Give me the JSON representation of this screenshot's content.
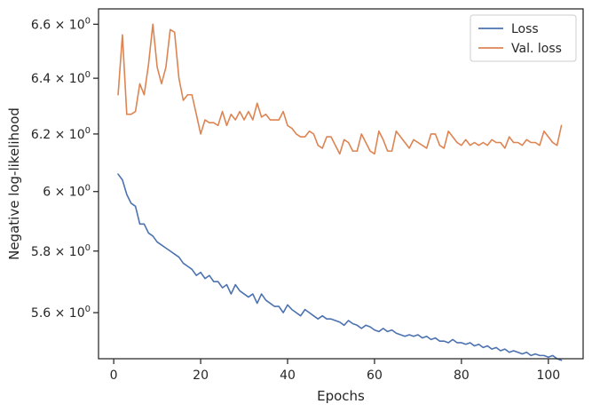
{
  "chart_data": {
    "type": "line",
    "xlabel": "Epochs",
    "ylabel": "Negative log-likelihood",
    "xlim": [
      -3.5,
      108.0
    ],
    "ylim": [
      5.455,
      6.658
    ],
    "yscale": "log",
    "grid": false,
    "legend_position": "top-right",
    "xticks": [
      0,
      20,
      40,
      60,
      80,
      100
    ],
    "xtick_labels": [
      "0",
      "20",
      "40",
      "60",
      "80",
      "100"
    ],
    "yticks": [
      5.6,
      5.8,
      6.0,
      6.2,
      6.4,
      6.6
    ],
    "ytick_labels": [
      {
        "mantissa": "5.6",
        "base": "10",
        "exp": "0"
      },
      {
        "mantissa": "5.8",
        "base": "10",
        "exp": "0"
      },
      {
        "mantissa": "6",
        "base": "10",
        "exp": "0"
      },
      {
        "mantissa": "6.2",
        "base": "10",
        "exp": "0"
      },
      {
        "mantissa": "6.4",
        "base": "10",
        "exp": "0"
      },
      {
        "mantissa": "6.6",
        "base": "10",
        "exp": "0"
      }
    ],
    "colors": {
      "Loss": "#4c72b0",
      "Val. loss": "#dd8452",
      "axes": "#262626"
    },
    "series": [
      {
        "name": "Loss",
        "x": [
          1,
          2,
          3,
          4,
          5,
          6,
          7,
          8,
          9,
          10,
          11,
          12,
          13,
          14,
          15,
          16,
          17,
          18,
          19,
          20,
          21,
          22,
          23,
          24,
          25,
          26,
          27,
          28,
          29,
          30,
          31,
          32,
          33,
          34,
          35,
          36,
          37,
          38,
          39,
          40,
          41,
          42,
          43,
          44,
          45,
          46,
          47,
          48,
          49,
          50,
          51,
          52,
          53,
          54,
          55,
          56,
          57,
          58,
          59,
          60,
          61,
          62,
          63,
          64,
          65,
          66,
          67,
          68,
          69,
          70,
          71,
          72,
          73,
          74,
          75,
          76,
          77,
          78,
          79,
          80,
          81,
          82,
          83,
          84,
          85,
          86,
          87,
          88,
          89,
          90,
          91,
          92,
          93,
          94,
          95,
          96,
          97,
          98,
          99,
          100,
          101,
          102,
          103
        ],
        "values": [
          6.06,
          6.04,
          5.99,
          5.96,
          5.95,
          5.89,
          5.89,
          5.86,
          5.85,
          5.83,
          5.82,
          5.81,
          5.8,
          5.79,
          5.78,
          5.76,
          5.75,
          5.74,
          5.72,
          5.73,
          5.71,
          5.72,
          5.7,
          5.7,
          5.68,
          5.69,
          5.66,
          5.69,
          5.67,
          5.66,
          5.65,
          5.66,
          5.63,
          5.66,
          5.64,
          5.63,
          5.62,
          5.62,
          5.6,
          5.625,
          5.61,
          5.6,
          5.59,
          5.61,
          5.6,
          5.59,
          5.58,
          5.59,
          5.58,
          5.58,
          5.575,
          5.57,
          5.56,
          5.575,
          5.565,
          5.56,
          5.55,
          5.56,
          5.555,
          5.545,
          5.54,
          5.55,
          5.54,
          5.545,
          5.535,
          5.53,
          5.525,
          5.53,
          5.525,
          5.53,
          5.52,
          5.525,
          5.515,
          5.52,
          5.51,
          5.51,
          5.505,
          5.515,
          5.505,
          5.505,
          5.5,
          5.505,
          5.495,
          5.5,
          5.49,
          5.495,
          5.485,
          5.49,
          5.48,
          5.485,
          5.475,
          5.48,
          5.475,
          5.47,
          5.475,
          5.465,
          5.47,
          5.465,
          5.465,
          5.46,
          5.465,
          5.455,
          5.45
        ]
      },
      {
        "name": "Val. loss",
        "x": [
          1,
          2,
          3,
          4,
          5,
          6,
          7,
          8,
          9,
          10,
          11,
          12,
          13,
          14,
          15,
          16,
          17,
          18,
          19,
          20,
          21,
          22,
          23,
          24,
          25,
          26,
          27,
          28,
          29,
          30,
          31,
          32,
          33,
          34,
          35,
          36,
          37,
          38,
          39,
          40,
          41,
          42,
          43,
          44,
          45,
          46,
          47,
          48,
          49,
          50,
          51,
          52,
          53,
          54,
          55,
          56,
          57,
          58,
          59,
          60,
          61,
          62,
          63,
          64,
          65,
          66,
          67,
          68,
          69,
          70,
          71,
          72,
          73,
          74,
          75,
          76,
          77,
          78,
          79,
          80,
          81,
          82,
          83,
          84,
          85,
          86,
          87,
          88,
          89,
          90,
          91,
          92,
          93,
          94,
          95,
          96,
          97,
          98,
          99,
          100,
          101,
          102,
          103
        ],
        "values": [
          6.34,
          6.56,
          6.27,
          6.27,
          6.28,
          6.38,
          6.34,
          6.45,
          6.6,
          6.44,
          6.38,
          6.44,
          6.58,
          6.57,
          6.4,
          6.32,
          6.34,
          6.34,
          6.27,
          6.2,
          6.25,
          6.24,
          6.24,
          6.23,
          6.28,
          6.23,
          6.27,
          6.25,
          6.28,
          6.25,
          6.28,
          6.25,
          6.31,
          6.26,
          6.27,
          6.25,
          6.25,
          6.25,
          6.28,
          6.23,
          6.22,
          6.2,
          6.19,
          6.19,
          6.21,
          6.2,
          6.16,
          6.15,
          6.19,
          6.19,
          6.16,
          6.13,
          6.18,
          6.17,
          6.14,
          6.14,
          6.2,
          6.17,
          6.14,
          6.13,
          6.21,
          6.18,
          6.14,
          6.14,
          6.21,
          6.19,
          6.17,
          6.15,
          6.18,
          6.17,
          6.16,
          6.15,
          6.2,
          6.2,
          6.16,
          6.15,
          6.21,
          6.19,
          6.17,
          6.16,
          6.18,
          6.16,
          6.17,
          6.16,
          6.17,
          6.16,
          6.18,
          6.17,
          6.17,
          6.15,
          6.19,
          6.17,
          6.17,
          6.16,
          6.18,
          6.17,
          6.17,
          6.16,
          6.21,
          6.19,
          6.17,
          6.16,
          6.23
        ]
      }
    ]
  }
}
